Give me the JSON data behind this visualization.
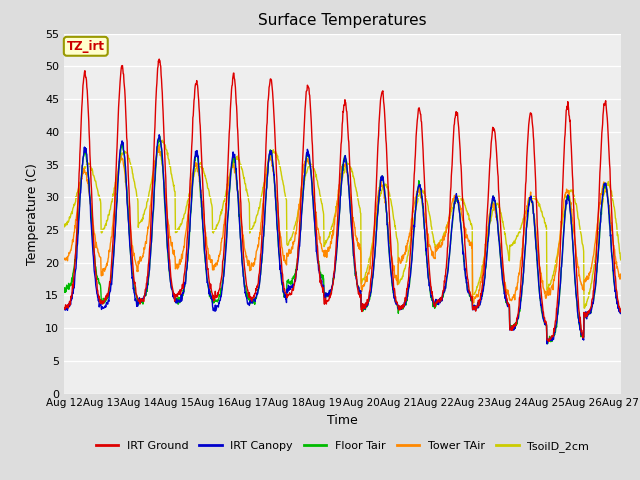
{
  "title": "Surface Temperatures",
  "xlabel": "Time",
  "ylabel": "Temperature (C)",
  "ylim": [
    0,
    55
  ],
  "yticks": [
    0,
    5,
    10,
    15,
    20,
    25,
    30,
    35,
    40,
    45,
    50,
    55
  ],
  "x_tick_labels": [
    "Aug 12",
    "Aug 13",
    "Aug 14",
    "Aug 15",
    "Aug 16",
    "Aug 17",
    "Aug 18",
    "Aug 19",
    "Aug 20",
    "Aug 21",
    "Aug 22",
    "Aug 23",
    "Aug 24",
    "Aug 25",
    "Aug 26",
    "Aug 27"
  ],
  "annotation_text": "TZ_irt",
  "annotation_color": "#cc0000",
  "annotation_bg": "#ffffcc",
  "annotation_border": "#999900",
  "series_colors": [
    "#dd0000",
    "#0000cc",
    "#00bb00",
    "#ff8800",
    "#cccc00"
  ],
  "legend_labels": [
    "IRT Ground",
    "IRT Canopy",
    "Floor Tair",
    "Tower TAir",
    "TsoilD_2cm"
  ],
  "legend_colors": [
    "#dd0000",
    "#0000cc",
    "#00bb00",
    "#ff8800",
    "#cccc00"
  ],
  "bg_color": "#dddddd",
  "plot_bg_color": "#eeeeee",
  "n_days": 15,
  "pts_per_day": 96,
  "irt_ground_peaks": [
    49,
    50,
    51,
    47.5,
    48.5,
    48,
    47,
    44.5,
    46,
    43.5,
    43,
    40.5,
    43,
    44,
    44.5
  ],
  "irt_ground_mins": [
    13,
    14,
    14,
    15,
    14.5,
    14.5,
    15,
    14,
    13,
    13,
    14,
    13,
    10,
    8,
    12
  ],
  "irt_canopy_peaks": [
    37.5,
    38.5,
    39.5,
    37,
    36.5,
    37,
    37,
    36,
    33,
    32,
    30,
    30,
    30,
    30,
    32
  ],
  "irt_canopy_mins": [
    13,
    13,
    14,
    14,
    13,
    14,
    16,
    15,
    13,
    13,
    14,
    13,
    10,
    8,
    12
  ],
  "floor_tair_peaks": [
    37,
    38,
    39,
    36.5,
    36,
    37,
    36.5,
    36,
    33,
    32,
    30,
    30,
    30,
    30,
    32
  ],
  "floor_tair_mins": [
    16,
    14,
    14,
    14,
    14,
    14,
    17,
    15,
    13,
    13,
    14,
    13,
    10,
    8,
    12
  ],
  "tower_tair_peaks": [
    34,
    36,
    37.5,
    35,
    35,
    36,
    36,
    35,
    32,
    31,
    30,
    29,
    30,
    31,
    32
  ],
  "tower_tair_mins": [
    20,
    18,
    20,
    19,
    19,
    19,
    21,
    21,
    16,
    20,
    22,
    14,
    14,
    15,
    17
  ],
  "tsoil_peaks": [
    35,
    37,
    38.5,
    35,
    36,
    37,
    35,
    35,
    32,
    31,
    30,
    29,
    30,
    31,
    32
  ],
  "tsoil_mins": [
    25,
    24,
    25,
    24,
    24,
    24,
    22,
    22,
    16,
    16,
    22,
    14,
    22,
    15,
    12
  ]
}
